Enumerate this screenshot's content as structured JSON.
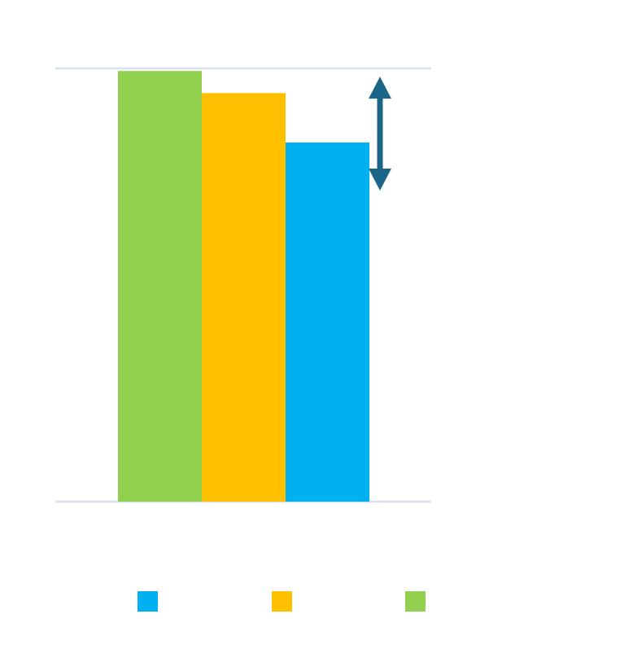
{
  "chart_data": {
    "type": "bar",
    "title": "",
    "xlabel": "",
    "ylabel": "",
    "ylim": [
      0,
      100
    ],
    "grid": false,
    "legend_position": "bottom",
    "series": [
      {
        "color": "#92d050",
        "values": [
          99.4
        ]
      },
      {
        "color": "#ffc000",
        "values": [
          94.3
        ]
      },
      {
        "color": "#00b0f0",
        "values": [
          82.9
        ]
      }
    ],
    "legend": [
      {
        "color": "#00b0f0"
      },
      {
        "color": "#ffc000"
      },
      {
        "color": "#92d050"
      }
    ],
    "annotation": {
      "type": "double-arrow",
      "from": 98.1,
      "to": 71.8,
      "color": "#1b6688"
    },
    "axis_color": "#d6e3ec"
  }
}
